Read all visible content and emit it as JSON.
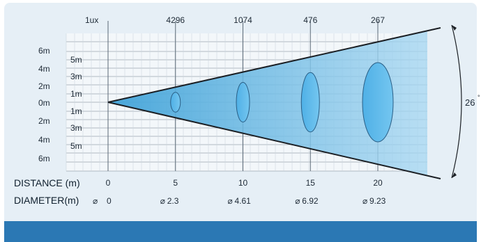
{
  "title_unit": "1ux",
  "lux_values": [
    "4296",
    "1074",
    "476",
    "267"
  ],
  "beam_angle": "26",
  "distance_label": "DISTANCE (m)",
  "diameter_label": "DIAMETER(m)",
  "diameter_symbol": "⌀",
  "outer_labels": [
    "6m",
    "4m",
    "2m",
    "0m",
    "2m",
    "4m",
    "6m"
  ],
  "inner_labels": [
    "5m",
    "3m",
    "1m",
    "1m",
    "3m",
    "5m"
  ],
  "distances": [
    "0",
    "5",
    "10",
    "15",
    "20"
  ],
  "diameters": [
    "0",
    "2.3",
    "4.61",
    "6.92",
    "9.23"
  ],
  "chart_data": {
    "type": "beam-diagram",
    "beam_angle_deg": 26,
    "distance_m": [
      0,
      5,
      10,
      15,
      20
    ],
    "diameter_m": [
      0,
      2.3,
      4.61,
      6.92,
      9.23
    ],
    "illuminance_lux": [
      null,
      4296,
      1074,
      476,
      267
    ],
    "colors": {
      "panel": "#e6eff6",
      "beam": "#5ab4e3",
      "footer": "#2b78b4",
      "text": "#1e2a36"
    }
  }
}
